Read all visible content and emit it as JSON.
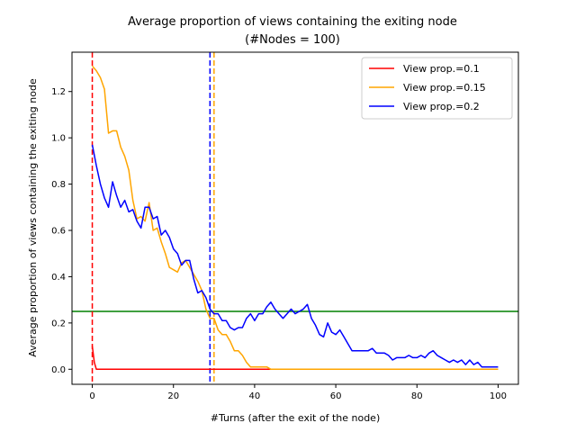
{
  "chart_data": {
    "type": "line",
    "title": "Average proportion of views containing the exiting node",
    "subtitle": "(#Nodes = 100)",
    "xlabel": "#Turns (after the exit of the node)",
    "ylabel": "Average proportion of views containing the exiting node",
    "xlim": [
      -5,
      105
    ],
    "ylim": [
      -0.065,
      1.37
    ],
    "xticks": [
      0,
      20,
      40,
      60,
      80,
      100
    ],
    "yticks": [
      0.0,
      0.2,
      0.4,
      0.6,
      0.8,
      1.0,
      1.2
    ],
    "grid": false,
    "legend_position": "top-right",
    "hline": {
      "y": 0.25,
      "color": "#008000"
    },
    "series": [
      {
        "name": "View prop.=0.1",
        "color": "#ff0000",
        "vline": 0,
        "x": [
          0,
          0.5,
          1,
          2,
          10,
          20,
          30,
          40,
          44,
          50,
          60,
          70,
          80,
          90,
          100
        ],
        "y": [
          0.1,
          0.03,
          0.0,
          0.0,
          0.0,
          0.0,
          0.0,
          0.0,
          0.0,
          0.0,
          0.0,
          0.0,
          0.0,
          0.0,
          0.0
        ]
      },
      {
        "name": "View prop.=0.15",
        "color": "#ffa500",
        "vline": 30,
        "x": [
          0,
          1,
          2,
          3,
          4,
          5,
          6,
          7,
          8,
          9,
          10,
          11,
          12,
          13,
          14,
          15,
          16,
          17,
          18,
          19,
          20,
          21,
          22,
          23,
          24,
          25,
          26,
          27,
          28,
          29,
          30,
          31,
          32,
          33,
          34,
          35,
          36,
          37,
          38,
          39,
          40,
          41,
          42,
          43,
          44,
          50,
          60,
          70,
          80,
          90,
          100
        ],
        "y": [
          1.31,
          1.29,
          1.26,
          1.21,
          1.02,
          1.03,
          1.03,
          0.96,
          0.92,
          0.86,
          0.73,
          0.65,
          0.66,
          0.64,
          0.72,
          0.6,
          0.61,
          0.55,
          0.5,
          0.44,
          0.43,
          0.42,
          0.46,
          0.47,
          0.44,
          0.41,
          0.38,
          0.34,
          0.26,
          0.22,
          0.22,
          0.17,
          0.15,
          0.15,
          0.12,
          0.08,
          0.08,
          0.06,
          0.03,
          0.01,
          0.01,
          0.01,
          0.01,
          0.01,
          0.0,
          0.0,
          0.0,
          0.0,
          0.0,
          0.0,
          0.0
        ]
      },
      {
        "name": "View prop.=0.2",
        "color": "#0000ff",
        "vline": 29,
        "x": [
          0,
          1,
          2,
          3,
          4,
          5,
          6,
          7,
          8,
          9,
          10,
          11,
          12,
          13,
          14,
          15,
          16,
          17,
          18,
          19,
          20,
          21,
          22,
          23,
          24,
          25,
          26,
          27,
          28,
          29,
          30,
          31,
          32,
          33,
          34,
          35,
          36,
          37,
          38,
          39,
          40,
          41,
          42,
          43,
          44,
          45,
          46,
          47,
          48,
          49,
          50,
          51,
          52,
          53,
          54,
          55,
          56,
          57,
          58,
          59,
          60,
          61,
          62,
          63,
          64,
          65,
          66,
          67,
          68,
          69,
          70,
          71,
          72,
          73,
          74,
          75,
          76,
          77,
          78,
          79,
          80,
          81,
          82,
          83,
          84,
          85,
          86,
          87,
          88,
          89,
          90,
          91,
          92,
          93,
          94,
          95,
          96,
          97,
          98,
          99,
          100
        ],
        "y": [
          0.97,
          0.88,
          0.8,
          0.74,
          0.7,
          0.81,
          0.75,
          0.7,
          0.73,
          0.68,
          0.69,
          0.64,
          0.61,
          0.7,
          0.7,
          0.65,
          0.66,
          0.58,
          0.6,
          0.57,
          0.52,
          0.5,
          0.45,
          0.47,
          0.47,
          0.39,
          0.33,
          0.34,
          0.31,
          0.26,
          0.24,
          0.24,
          0.21,
          0.21,
          0.18,
          0.17,
          0.18,
          0.18,
          0.22,
          0.24,
          0.21,
          0.24,
          0.24,
          0.27,
          0.29,
          0.26,
          0.24,
          0.22,
          0.24,
          0.26,
          0.24,
          0.25,
          0.26,
          0.28,
          0.22,
          0.19,
          0.15,
          0.14,
          0.2,
          0.16,
          0.15,
          0.17,
          0.14,
          0.11,
          0.08,
          0.08,
          0.08,
          0.08,
          0.08,
          0.09,
          0.07,
          0.07,
          0.07,
          0.06,
          0.04,
          0.05,
          0.05,
          0.05,
          0.06,
          0.05,
          0.05,
          0.06,
          0.05,
          0.07,
          0.08,
          0.06,
          0.05,
          0.04,
          0.03,
          0.04,
          0.03,
          0.04,
          0.02,
          0.04,
          0.02,
          0.03,
          0.01,
          0.01,
          0.01,
          0.01,
          0.01
        ]
      }
    ]
  }
}
